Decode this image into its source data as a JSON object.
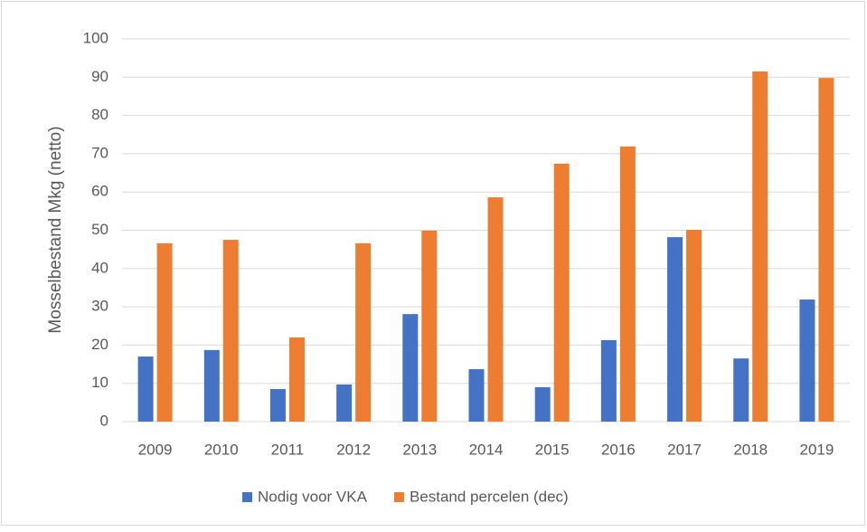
{
  "chart_data": {
    "type": "bar",
    "y_label": "Mosselbestand Mkg (netto)",
    "categories": [
      "2009",
      "2010",
      "2011",
      "2012",
      "2013",
      "2014",
      "2015",
      "2016",
      "2017",
      "2018",
      "2019"
    ],
    "series": [
      {
        "name": "Nodig voor VKA",
        "color": "#4472c4",
        "values": [
          17,
          18.7,
          8.5,
          9.7,
          28.1,
          13.7,
          9,
          21.3,
          48.2,
          16.5,
          31.9
        ]
      },
      {
        "name": "Bestand percelen (dec)",
        "color": "#ed7d31",
        "values": [
          46.6,
          47.5,
          22,
          46.6,
          49.9,
          58.6,
          67.4,
          71.9,
          50.1,
          91.5,
          89.8
        ]
      }
    ],
    "ylim": [
      0,
      100
    ],
    "yticks": [
      0,
      10,
      20,
      30,
      40,
      50,
      60,
      70,
      80,
      90,
      100
    ],
    "grid": true,
    "legend": "bottom"
  }
}
